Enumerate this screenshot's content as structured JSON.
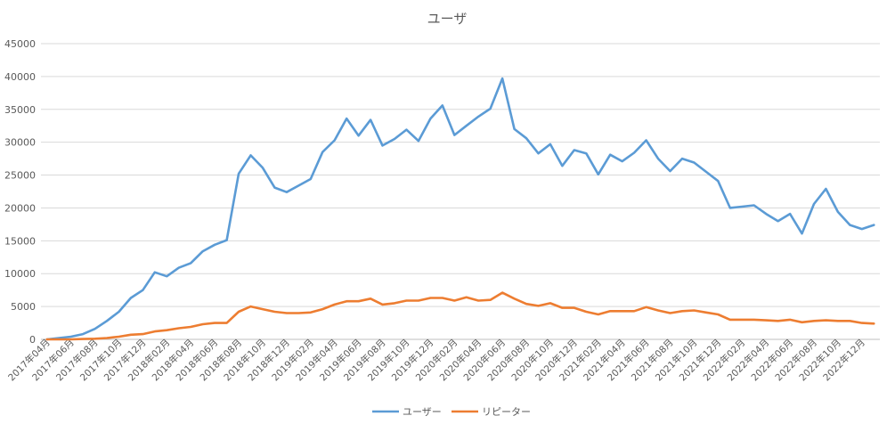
{
  "chart_data": {
    "type": "line",
    "title": "ユーザ",
    "xlabel": "",
    "ylabel": "",
    "ylim": [
      0,
      45000
    ],
    "yticks": [
      0,
      5000,
      10000,
      15000,
      20000,
      25000,
      30000,
      35000,
      40000,
      45000
    ],
    "grid": true,
    "legend": "bottom",
    "tick_labels": [
      "2017年04月",
      "2017年06月",
      "2017年08月",
      "2017年10月",
      "2017年12月",
      "2018年02月",
      "2018年04月",
      "2018年06月",
      "2018年08月",
      "2018年10月",
      "2018年12月",
      "2019年02月",
      "2019年04月",
      "2019年06月",
      "2019年08月",
      "2019年10月",
      "2019年12月",
      "2020年02月",
      "2020年04月",
      "2020年06月",
      "2020年08月",
      "2020年10月",
      "2020年12月",
      "2021年02月",
      "2021年04月",
      "2021年06月",
      "2021年08月",
      "2021年10月",
      "2021年12月",
      "2022年02月",
      "2022年04月",
      "2022年06月",
      "2022年08月",
      "2022年10月",
      "2022年12月"
    ],
    "x_start": "2017-04",
    "x_end": "2023-01",
    "series": [
      {
        "name": "ユーザー",
        "color": "#5b9bd5",
        "values": [
          0,
          200,
          400,
          800,
          1600,
          2800,
          4200,
          6300,
          7500,
          10200,
          9600,
          10900,
          11600,
          13400,
          14400,
          15100,
          25200,
          28000,
          26100,
          23100,
          22400,
          23400,
          24400,
          28500,
          30300,
          33600,
          31000,
          33400,
          29500,
          30500,
          31900,
          30200,
          33600,
          35600,
          31100,
          32500,
          33900,
          35100,
          39700,
          32000,
          30600,
          28300,
          29700,
          26400,
          28800,
          28300,
          25100,
          28100,
          27100,
          28400,
          30300,
          27500,
          25600,
          27500,
          26900,
          25500,
          24100,
          20000,
          20200,
          20400,
          19100,
          18000,
          19100,
          16100,
          20600,
          22900,
          19400,
          17400,
          16800,
          17400
        ]
      },
      {
        "name": "リピーター",
        "color": "#ed7d31",
        "values": [
          0,
          0,
          0,
          50,
          100,
          200,
          400,
          700,
          800,
          1200,
          1400,
          1700,
          1900,
          2300,
          2500,
          2500,
          4200,
          5000,
          4600,
          4200,
          4000,
          4000,
          4100,
          4600,
          5300,
          5800,
          5800,
          6200,
          5300,
          5500,
          5900,
          5900,
          6300,
          6300,
          5900,
          6400,
          5900,
          6000,
          7100,
          6200,
          5400,
          5100,
          5500,
          4800,
          4800,
          4200,
          3800,
          4300,
          4300,
          4300,
          4900,
          4400,
          4000,
          4300,
          4400,
          4100,
          3800,
          3000,
          3000,
          3000,
          2900,
          2800,
          3000,
          2600,
          2800,
          2900,
          2800,
          2800,
          2500,
          2400
        ]
      }
    ]
  }
}
